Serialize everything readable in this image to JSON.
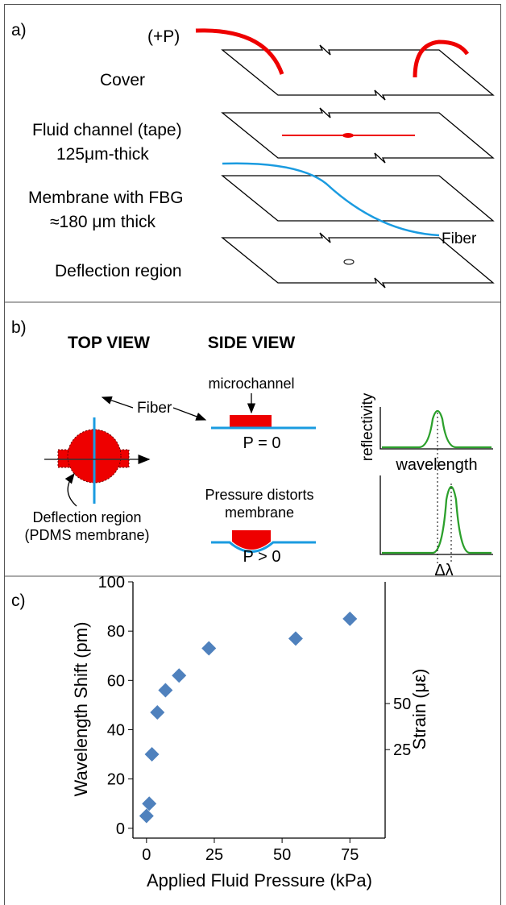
{
  "panel_a": {
    "label": "a)",
    "pressure": "(+P)",
    "layers": [
      "Cover",
      "Fluid channel (tape)",
      "Membrane with FBG",
      "Deflection region"
    ],
    "channel_thickness": "125μm-thick",
    "membrane_thickness": "≈180 μm thick",
    "fiber": "Fiber"
  },
  "panel_b": {
    "label": "b)",
    "top_view": "TOP VIEW",
    "side_view": "SIDE VIEW",
    "fiber": "Fiber",
    "microchannel": "microchannel",
    "p_zero": "P = 0",
    "pressure_line1": "Pressure distorts",
    "pressure_line2": "membrane",
    "p_positive": "P > 0",
    "deflection_line1": "Deflection region",
    "deflection_line2": "(PDMS membrane)",
    "reflectivity": "reflectivity",
    "wavelength": "wavelength",
    "shift": "Δλ"
  },
  "chart_data": {
    "type": "scatter",
    "panel_label": "c)",
    "x_label": "Applied Fluid Pressure (kPa)",
    "y_label": "Wavelength Shift (pm)",
    "y2_label": "Strain (με)",
    "x": [
      0,
      1,
      2,
      4,
      7,
      12,
      23,
      55,
      75
    ],
    "values": [
      5,
      10,
      30,
      47,
      56,
      62,
      73,
      77,
      85
    ],
    "color": "#4f81bd",
    "xlim": [
      -5,
      88
    ],
    "xticks": [
      0,
      25,
      50,
      75
    ],
    "ylim": [
      -4,
      100
    ],
    "yticks": [
      0,
      20,
      40,
      60,
      80,
      100
    ],
    "y2lim": [
      -23,
      116
    ],
    "y2ticks": [
      25,
      50
    ]
  }
}
